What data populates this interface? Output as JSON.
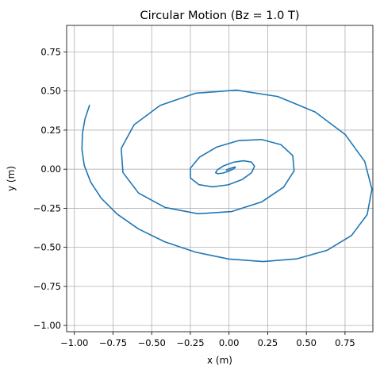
{
  "chart_data": {
    "type": "line",
    "title": "Circular Motion (Bz = 1.0 T)",
    "xlabel": "x (m)",
    "ylabel": "y (m)",
    "xlim": [
      -1.05,
      0.93
    ],
    "ylim": [
      -1.04,
      0.92
    ],
    "xticks": [
      -1.0,
      -0.75,
      -0.5,
      -0.25,
      0.0,
      0.25,
      0.5,
      0.75
    ],
    "xtick_labels": [
      "−1.00",
      "−0.75",
      "−0.50",
      "−0.25",
      "0.00",
      "0.25",
      "0.50",
      "0.75"
    ],
    "yticks": [
      -1.0,
      -0.75,
      -0.5,
      -0.25,
      0.0,
      0.25,
      0.5,
      0.75
    ],
    "ytick_labels": [
      "−1.00",
      "−0.75",
      "−0.50",
      "−0.25",
      "0.00",
      "0.25",
      "0.50",
      "0.75"
    ],
    "grid": true,
    "series": [
      {
        "color": "#1f77b4",
        "x": [
          -0.902,
          -0.931,
          -0.948,
          -0.951,
          -0.936,
          -0.895,
          -0.826,
          -0.724,
          -0.586,
          -0.415,
          -0.216,
          0.0,
          0.221,
          0.437,
          0.634,
          0.792,
          0.893,
          0.924,
          0.877,
          0.751,
          0.557,
          0.315,
          0.048,
          -0.216,
          -0.446,
          -0.614,
          -0.697,
          -0.686,
          -0.585,
          -0.413,
          -0.201,
          0.018,
          0.212,
          0.353,
          0.421,
          0.412,
          0.335,
          0.21,
          0.062,
          -0.081,
          -0.191,
          -0.25,
          -0.249,
          -0.195,
          -0.106,
          -0.005,
          0.086,
          0.146,
          0.165,
          0.144,
          0.092,
          0.027,
          -0.034,
          -0.074,
          -0.087,
          -0.073,
          -0.04,
          -0.003,
          0.027,
          0.041,
          0.039,
          0.026,
          0.008,
          -0.008,
          -0.016,
          -0.016,
          -0.01,
          -0.003,
          0.002,
          0.004,
          0.003,
          0.001,
          0.0
        ],
        "y": [
          0.409,
          0.323,
          0.228,
          0.128,
          0.024,
          -0.082,
          -0.186,
          -0.287,
          -0.382,
          -0.465,
          -0.531,
          -0.575,
          -0.591,
          -0.574,
          -0.519,
          -0.424,
          -0.291,
          -0.128,
          0.05,
          0.222,
          0.366,
          0.465,
          0.506,
          0.486,
          0.408,
          0.284,
          0.133,
          -0.021,
          -0.153,
          -0.245,
          -0.285,
          -0.271,
          -0.209,
          -0.115,
          -0.01,
          0.087,
          0.157,
          0.19,
          0.183,
          0.141,
          0.077,
          0.006,
          -0.057,
          -0.099,
          -0.113,
          -0.1,
          -0.066,
          -0.022,
          0.019,
          0.046,
          0.054,
          0.044,
          0.022,
          -0.003,
          -0.022,
          -0.029,
          -0.025,
          -0.013,
          0.001,
          0.011,
          0.014,
          0.011,
          0.005,
          -0.001,
          -0.005,
          -0.006,
          -0.004,
          -0.001,
          0.001,
          0.002,
          0.001,
          0.0,
          0.0
        ]
      }
    ]
  }
}
